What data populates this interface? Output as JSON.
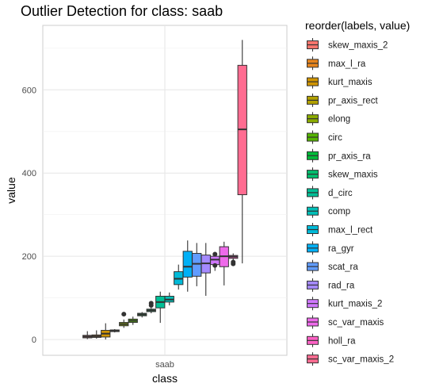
{
  "chart_data": {
    "type": "boxplot",
    "title": "Outlier Detection for class: saab",
    "xlabel": "class",
    "ylabel": "value",
    "categories": [
      "saab"
    ],
    "ylim": [
      -38,
      755
    ],
    "yticks": [
      0,
      200,
      400,
      600
    ],
    "grid": true,
    "legend": {
      "title": "reorder(labels, value)",
      "placement": "right"
    },
    "series": [
      {
        "name": "skew_maxis_2",
        "color": "#F8766D",
        "min": 1,
        "q1": 4,
        "median": 7,
        "q3": 10,
        "max": 20,
        "outliers": []
      },
      {
        "name": "max_l_ra",
        "color": "#E7851E",
        "min": 2,
        "q1": 5,
        "median": 8,
        "q3": 11,
        "max": 22,
        "outliers": []
      },
      {
        "name": "kurt_maxis",
        "color": "#D09400",
        "min": 0,
        "q1": 6,
        "median": 14,
        "q3": 22,
        "max": 39,
        "outliers": []
      },
      {
        "name": "pr_axis_rect",
        "color": "#B2A100",
        "min": 17,
        "q1": 19,
        "median": 21,
        "q3": 23,
        "max": 25,
        "outliers": []
      },
      {
        "name": "elong",
        "color": "#8BAB00",
        "min": 28,
        "q1": 33,
        "median": 37,
        "q3": 41,
        "max": 48,
        "outliers": [
          61
        ]
      },
      {
        "name": "circ",
        "color": "#55B400",
        "min": 35,
        "q1": 41,
        "median": 45,
        "q3": 49,
        "max": 55,
        "outliers": []
      },
      {
        "name": "pr_axis_ra",
        "color": "#00BA38",
        "min": 53,
        "q1": 57,
        "median": 60,
        "q3": 63,
        "max": 66,
        "outliers": []
      },
      {
        "name": "skew_maxis",
        "color": "#00BE6D",
        "min": 63,
        "q1": 67,
        "median": 70,
        "q3": 73,
        "max": 76,
        "outliers": [
          82,
          87
        ]
      },
      {
        "name": "d_circ",
        "color": "#00BF96",
        "min": 40,
        "q1": 76,
        "median": 90,
        "q3": 104,
        "max": 115,
        "outliers": []
      },
      {
        "name": "comp",
        "color": "#00BFB8",
        "min": 82,
        "q1": 90,
        "median": 96,
        "q3": 104,
        "max": 113,
        "outliers": []
      },
      {
        "name": "max_l_rect",
        "color": "#00BAD8",
        "min": 120,
        "q1": 132,
        "median": 146,
        "q3": 163,
        "max": 180,
        "outliers": []
      },
      {
        "name": "ra_gyr",
        "color": "#00B0F6",
        "min": 115,
        "q1": 150,
        "median": 175,
        "q3": 212,
        "max": 238,
        "outliers": []
      },
      {
        "name": "scat_ra",
        "color": "#619CFF",
        "min": 128,
        "q1": 152,
        "median": 182,
        "q3": 207,
        "max": 232,
        "outliers": []
      },
      {
        "name": "rad_ra",
        "color": "#A58AFF",
        "min": 105,
        "q1": 160,
        "median": 183,
        "q3": 203,
        "max": 232,
        "outliers": []
      },
      {
        "name": "kurt_maxis_2",
        "color": "#D078FF",
        "min": 165,
        "q1": 180,
        "median": 192,
        "q3": 200,
        "max": 210,
        "outliers": [
          178,
          205
        ]
      },
      {
        "name": "sc_var_maxis",
        "color": "#EE6AEA",
        "min": 130,
        "q1": 175,
        "median": 200,
        "q3": 223,
        "max": 235,
        "outliers": []
      },
      {
        "name": "holl_ra",
        "color": "#FF61C5",
        "min": 184,
        "q1": 195,
        "median": 199,
        "q3": 202,
        "max": 207,
        "outliers": [
          182,
          186
        ]
      },
      {
        "name": "sc_var_maxis_2",
        "color": "#FF6C91",
        "min": 183,
        "q1": 348,
        "median": 505,
        "q3": 659,
        "max": 720,
        "outliers": []
      }
    ]
  }
}
